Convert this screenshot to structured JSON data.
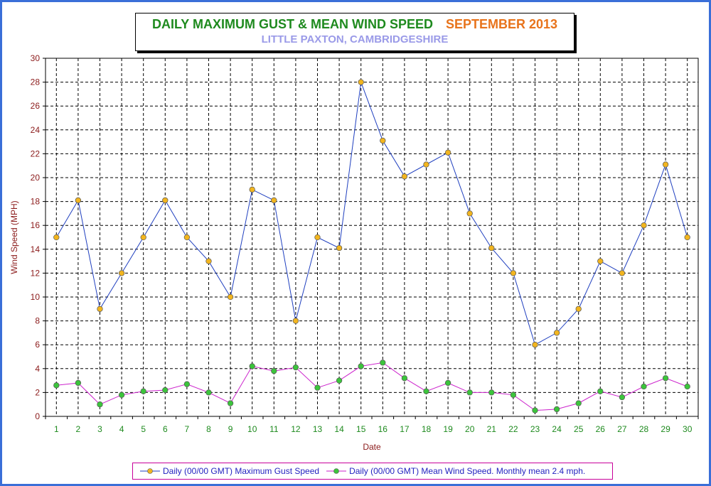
{
  "chart_data": {
    "type": "line",
    "title": "DAILY MAXIMUM GUST & MEAN WIND SPEED",
    "title_period": "SEPTEMBER 2013",
    "subtitle": "LITTLE PAXTON, CAMBRIDGESHIRE",
    "xlabel": "Date",
    "ylabel": "Wind Speed (MPH)",
    "ylim": [
      0,
      30
    ],
    "yticks": [
      0,
      2,
      4,
      6,
      8,
      10,
      12,
      14,
      16,
      18,
      20,
      22,
      24,
      26,
      28,
      30
    ],
    "categories": [
      "1",
      "2",
      "3",
      "4",
      "5",
      "6",
      "7",
      "8",
      "9",
      "10",
      "11",
      "12",
      "13",
      "14",
      "15",
      "16",
      "17",
      "18",
      "19",
      "20",
      "21",
      "22",
      "23",
      "24",
      "25",
      "26",
      "27",
      "28",
      "29",
      "30"
    ],
    "grid": true,
    "legend_position": "bottom",
    "series": [
      {
        "name": "Daily (00/00 GMT) Maximum Gust Speed",
        "line_color": "#1f3fbf",
        "marker_color": "#f2b51f",
        "values": [
          15,
          18.1,
          9,
          12,
          15,
          18.1,
          15,
          13,
          10,
          19,
          18.1,
          8,
          15,
          14.1,
          28,
          23.1,
          20.1,
          21.1,
          22.1,
          17,
          14.1,
          12,
          6,
          7,
          9,
          13,
          12,
          16,
          21.1,
          15
        ]
      },
      {
        "name": "Daily (00/00 GMT) Mean Wind Speed. Monthly mean 2.4 mph.",
        "line_color": "#cc22cc",
        "marker_color": "#3cc43c",
        "values": [
          2.6,
          2.8,
          1.0,
          1.8,
          2.1,
          2.2,
          2.7,
          2.0,
          1.1,
          4.2,
          3.8,
          4.1,
          2.4,
          3.0,
          4.2,
          4.5,
          3.2,
          2.1,
          2.8,
          2.0,
          2.0,
          1.8,
          0.5,
          0.6,
          1.1,
          2.1,
          1.6,
          2.5,
          3.2,
          2.5
        ]
      }
    ]
  },
  "colors": {
    "frame": "#3a6fd8",
    "axis_text": "#8b1a1a",
    "x_tick_text": "#1e8a1e",
    "grid": "#000000"
  }
}
